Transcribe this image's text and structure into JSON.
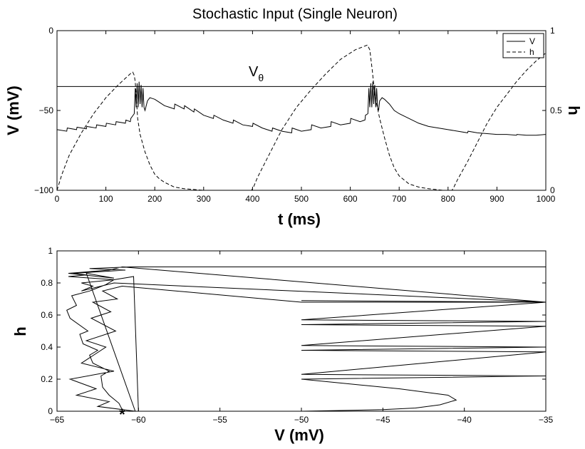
{
  "chart_data": [
    {
      "type": "line",
      "title": "Stochastic Input  (Single Neuron)",
      "xlabel": "t  (ms)",
      "ylabel_left": "V  (mV)",
      "ylabel_right": "h",
      "xlim": [
        0,
        1000
      ],
      "ylim_left": [
        -100,
        0
      ],
      "ylim_right": [
        0,
        1
      ],
      "xticks": [
        "0",
        "100",
        "200",
        "300",
        "400",
        "500",
        "600",
        "700",
        "800",
        "900",
        "1000"
      ],
      "yticks_left": [
        "-100",
        "-50",
        "0"
      ],
      "yticks_right": [
        "0",
        "0.5",
        "1"
      ],
      "legend_position": "top-right",
      "threshold": {
        "label": "V",
        "label_sub": "θ",
        "value": -35
      },
      "series": [
        {
          "name": "V",
          "axis": "left",
          "style": "solid",
          "x": [
            0,
            20,
            21,
            40,
            41,
            60,
            61,
            80,
            81,
            100,
            101,
            120,
            121,
            140,
            141,
            150,
            151,
            158,
            160,
            162,
            164,
            166,
            168,
            170,
            172,
            174,
            176,
            178,
            180,
            185,
            190,
            195,
            200,
            210,
            220,
            230,
            240,
            241,
            260,
            261,
            280,
            281,
            300,
            320,
            321,
            340,
            360,
            361,
            380,
            400,
            401,
            420,
            440,
            441,
            460,
            480,
            481,
            500,
            520,
            521,
            540,
            560,
            561,
            580,
            600,
            601,
            620,
            630,
            631,
            636,
            638,
            640,
            642,
            644,
            646,
            648,
            650,
            652,
            654,
            656,
            658,
            660,
            665,
            670,
            680,
            690,
            700,
            720,
            740,
            760,
            780,
            800,
            820,
            840,
            841,
            860,
            880,
            900,
            920,
            940,
            941,
            960,
            980,
            1000
          ],
          "y": [
            -62,
            -63,
            -61,
            -62,
            -60.5,
            -61.5,
            -60,
            -61,
            -59,
            -60,
            -58,
            -59,
            -57,
            -58,
            -56,
            -57,
            -55,
            -52,
            -36,
            -48,
            -33,
            -48,
            -32,
            -46,
            -34,
            -48,
            -36,
            -48,
            -50,
            -44,
            -42,
            -42.5,
            -43,
            -45,
            -47,
            -48,
            -49,
            -46,
            -49,
            -47,
            -51,
            -49,
            -53,
            -55,
            -53,
            -56,
            -58,
            -56,
            -59,
            -60,
            -58,
            -61,
            -63,
            -61,
            -63,
            -64,
            -61,
            -63,
            -62,
            -59,
            -61,
            -60,
            -57,
            -59,
            -58,
            -55,
            -57,
            -56,
            -53,
            -52,
            -36,
            -48,
            -33,
            -48,
            -32,
            -46,
            -34,
            -48,
            -36,
            -48,
            -50,
            -44,
            -42,
            -43,
            -46,
            -50,
            -52,
            -55,
            -58,
            -60,
            -61,
            -62,
            -63,
            -64,
            -63,
            -64,
            -64.5,
            -65,
            -65,
            -65.5,
            -65,
            -65.5,
            -65.5,
            -65
          ]
        },
        {
          "name": "h",
          "axis": "right",
          "style": "dashed",
          "x": [
            0,
            10,
            25,
            50,
            75,
            100,
            125,
            150,
            155,
            158,
            160,
            165,
            170,
            180,
            190,
            200,
            210,
            220,
            240,
            260,
            280,
            300,
            350,
            398,
            402,
            410,
            430,
            460,
            490,
            520,
            550,
            580,
            610,
            635,
            640,
            645,
            650,
            660,
            670,
            680,
            690,
            700,
            720,
            740,
            760,
            790,
            808,
            812,
            820,
            840,
            860,
            880,
            900,
            920,
            940,
            960,
            980,
            1000
          ],
          "y": [
            0,
            0.1,
            0.22,
            0.36,
            0.48,
            0.58,
            0.66,
            0.73,
            0.74,
            0.72,
            0.68,
            0.45,
            0.35,
            0.24,
            0.16,
            0.1,
            0.07,
            0.05,
            0.02,
            0.01,
            0.005,
            0,
            0,
            0,
            0.02,
            0.08,
            0.2,
            0.38,
            0.52,
            0.63,
            0.73,
            0.82,
            0.88,
            0.91,
            0.88,
            0.75,
            0.6,
            0.45,
            0.33,
            0.22,
            0.14,
            0.09,
            0.04,
            0.02,
            0.01,
            0,
            0,
            0.02,
            0.07,
            0.18,
            0.3,
            0.42,
            0.52,
            0.6,
            0.68,
            0.75,
            0.81,
            0.86
          ]
        }
      ]
    },
    {
      "type": "line",
      "title": "",
      "xlabel": "V  (mV)",
      "ylabel": "h",
      "xlim": [
        -65,
        -35
      ],
      "ylim": [
        0,
        1
      ],
      "xticks": [
        "-65",
        "-60",
        "-55",
        "-50",
        "-45",
        "-40",
        "-35"
      ],
      "yticks": [
        "0",
        "0.2",
        "0.4",
        "0.6",
        "0.8",
        "1"
      ],
      "start_marker": {
        "symbol": "*",
        "x": -61,
        "y": 0.01
      },
      "series": [
        {
          "name": "",
          "x": [
            -61,
            -61.2,
            -61.8,
            -62.2,
            -62.3,
            -61.8,
            -62.8,
            -63.0,
            -62.5,
            -63.4,
            -63.6,
            -63.1,
            -64.2,
            -64.4,
            -63.8,
            -64.1,
            -63.0,
            -62.0,
            -61.5,
            -60.3,
            -60.0,
            -50.0,
            -45,
            -43,
            -41.5,
            -40.5,
            -41,
            -42.5,
            -44,
            -46,
            -48,
            -50,
            -35,
            -50,
            -35,
            -50,
            -35,
            -50,
            -35,
            -50,
            -35,
            -50,
            -35,
            -50,
            -35,
            -50,
            -61,
            -62.2,
            -61.3,
            -62.8,
            -61.7,
            -62.9,
            -61.4,
            -63.2,
            -62.0,
            -63.5,
            -61.5,
            -64.2,
            -62.6,
            -63.8,
            -61.8,
            -62.5,
            -60.2,
            -63.2,
            -61.5,
            -64.3,
            -61.8,
            -61.0,
            -35,
            -61.5,
            -63.5,
            -62.8,
            -63.5,
            -61.5,
            -64.3,
            -63.2,
            -64.0,
            -60.8,
            -63.0,
            -60.5,
            -35,
            -60.5
          ],
          "y": [
            0.01,
            0.05,
            0.1,
            0.15,
            0.22,
            0.25,
            0.3,
            0.35,
            0.38,
            0.42,
            0.48,
            0.5,
            0.58,
            0.63,
            0.66,
            0.72,
            0.75,
            0.79,
            0.82,
            0.84,
            0.0,
            0.0,
            0.01,
            0.02,
            0.04,
            0.07,
            0.1,
            0.12,
            0.14,
            0.16,
            0.18,
            0.2,
            0.22,
            0.23,
            0.37,
            0.38,
            0.4,
            0.41,
            0.53,
            0.54,
            0.56,
            0.57,
            0.68,
            0.69,
            0.68,
            0.68,
            0.78,
            0.75,
            0.7,
            0.68,
            0.62,
            0.58,
            0.5,
            0.44,
            0.4,
            0.3,
            0.25,
            0.2,
            0.14,
            0.1,
            0.06,
            0.03,
            0.0,
            0.86,
            0.83,
            0.86,
            0.88,
            0.9,
            0.68,
            0.8,
            0.75,
            0.78,
            0.8,
            0.82,
            0.84,
            0.85,
            0.86,
            0.88,
            0.89,
            0.9,
            0.9,
            0.9
          ]
        }
      ]
    }
  ]
}
